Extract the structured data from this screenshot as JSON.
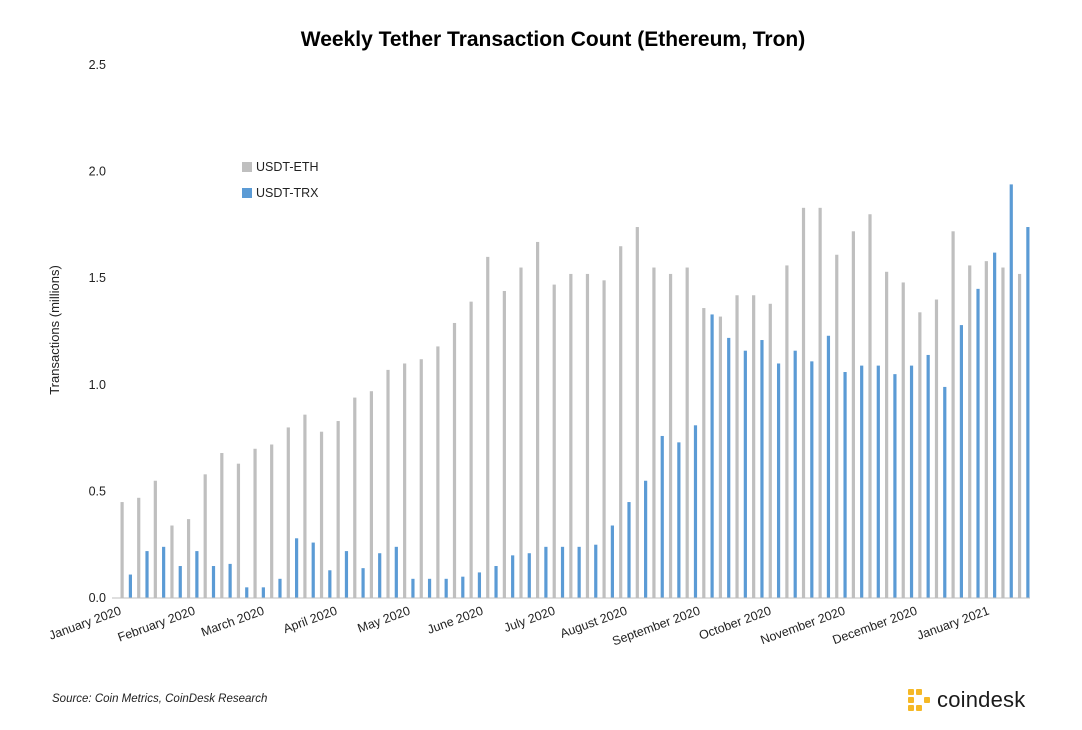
{
  "chart_data": {
    "type": "bar",
    "title": "Weekly Tether Transaction Count (Ethereum, Tron)",
    "ylabel": "Transactions (millions)",
    "ylim": [
      0,
      2.5
    ],
    "yticks": [
      "0.0",
      "0.5",
      "1.0",
      "1.5",
      "2.0",
      "2.5"
    ],
    "xtick_labels": [
      "January 2020",
      "February 2020",
      "March 2020",
      "April 2020",
      "May 2020",
      "June 2020",
      "July 2020",
      "August 2020",
      "September 2020",
      "October 2020",
      "November 2020",
      "December 2020",
      "January 2021"
    ],
    "legend_position": "upper-left inside plot",
    "grid": false,
    "series": [
      {
        "name": "USDT-ETH",
        "color": "#bfbfbf",
        "values": [
          0.45,
          0.47,
          0.55,
          0.34,
          0.37,
          0.58,
          0.68,
          0.63,
          0.7,
          0.72,
          0.8,
          0.86,
          0.78,
          0.83,
          0.94,
          0.97,
          1.07,
          1.1,
          1.12,
          1.18,
          1.29,
          1.39,
          1.6,
          1.44,
          1.55,
          1.67,
          1.47,
          1.52,
          1.52,
          1.49,
          1.65,
          1.74,
          1.55,
          1.52,
          1.55,
          1.36,
          1.32,
          1.42,
          1.42,
          1.38,
          1.56,
          1.83,
          1.83,
          1.61,
          1.72,
          1.8,
          1.53,
          1.48,
          1.34,
          1.4,
          1.72,
          1.56,
          1.58,
          1.55,
          1.52
        ]
      },
      {
        "name": "USDT-TRX",
        "color": "#5b9bd5",
        "values": [
          0.11,
          0.22,
          0.24,
          0.15,
          0.22,
          0.15,
          0.16,
          0.05,
          0.05,
          0.09,
          0.28,
          0.26,
          0.13,
          0.22,
          0.14,
          0.21,
          0.24,
          0.09,
          0.09,
          0.09,
          0.1,
          0.12,
          0.15,
          0.2,
          0.21,
          0.24,
          0.24,
          0.24,
          0.25,
          0.34,
          0.45,
          0.55,
          0.76,
          0.73,
          0.81,
          1.33,
          1.22,
          1.16,
          1.21,
          1.1,
          1.16,
          1.11,
          1.23,
          1.06,
          1.09,
          1.09,
          1.05,
          1.09,
          1.14,
          0.99,
          1.28,
          1.45,
          1.62,
          1.94,
          1.74
        ]
      }
    ]
  },
  "footer": {
    "source": "Source: Coin Metrics, CoinDesk Research",
    "brand": "coindesk"
  }
}
